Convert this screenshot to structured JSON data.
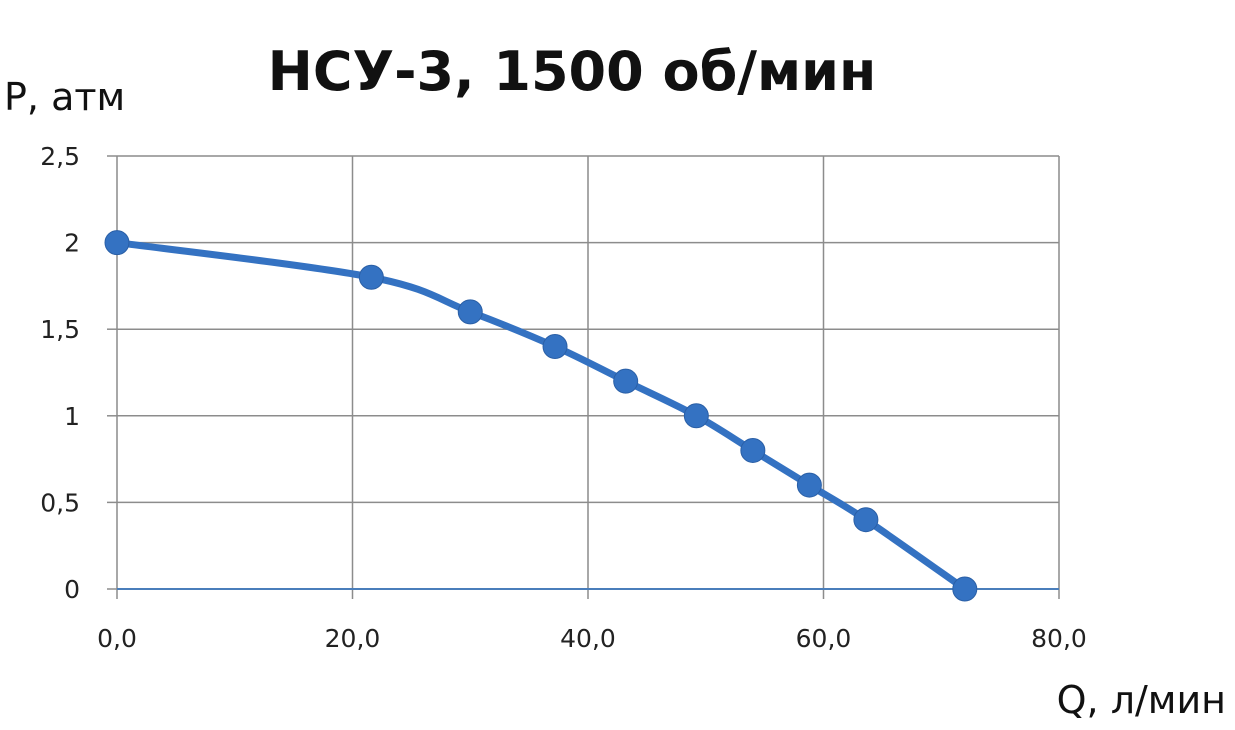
{
  "chart_data": {
    "type": "line",
    "title": "НСУ-3, 1500 об/мин",
    "xlabel": "Q, л/мин",
    "ylabel": "P, атм",
    "xlim": [
      0,
      80
    ],
    "ylim": [
      0,
      2.5
    ],
    "x_ticks": [
      "0,0",
      "20,0",
      "40,0",
      "60,0",
      "80,0"
    ],
    "y_ticks": [
      "0",
      "0,5",
      "1",
      "1,5",
      "2",
      "2,5"
    ],
    "grid": true,
    "series": [
      {
        "color": "#3472c2",
        "points": [
          {
            "x": 0.0,
            "y": 2.0
          },
          {
            "x": 21.6,
            "y": 1.8
          },
          {
            "x": 30.0,
            "y": 1.6
          },
          {
            "x": 37.2,
            "y": 1.4
          },
          {
            "x": 43.2,
            "y": 1.2
          },
          {
            "x": 49.2,
            "y": 1.0
          },
          {
            "x": 54.0,
            "y": 0.8
          },
          {
            "x": 58.8,
            "y": 0.6
          },
          {
            "x": 63.6,
            "y": 0.4
          },
          {
            "x": 72.0,
            "y": 0.0
          }
        ]
      }
    ]
  }
}
